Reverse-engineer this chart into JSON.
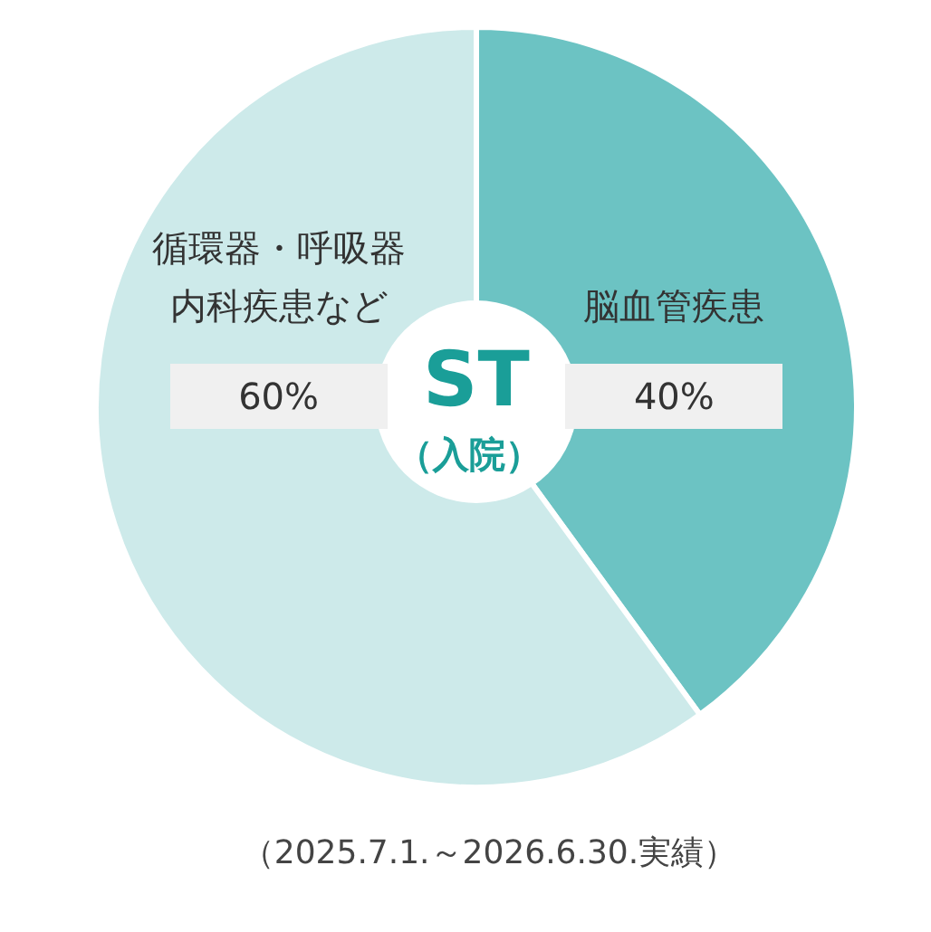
{
  "chart_data": {
    "type": "pie",
    "title": "ST",
    "subtitle": "（入院）",
    "categories": [
      "脳血管疾患",
      "循環器・呼吸器内科疾患など"
    ],
    "values": [
      40,
      60
    ],
    "value_labels": [
      "40%",
      "60%"
    ],
    "colors": [
      "#6cc3c3",
      "#cdeaea"
    ],
    "annotations": [
      "（2025.7.1.～2026.6.30.実績）"
    ]
  }
}
